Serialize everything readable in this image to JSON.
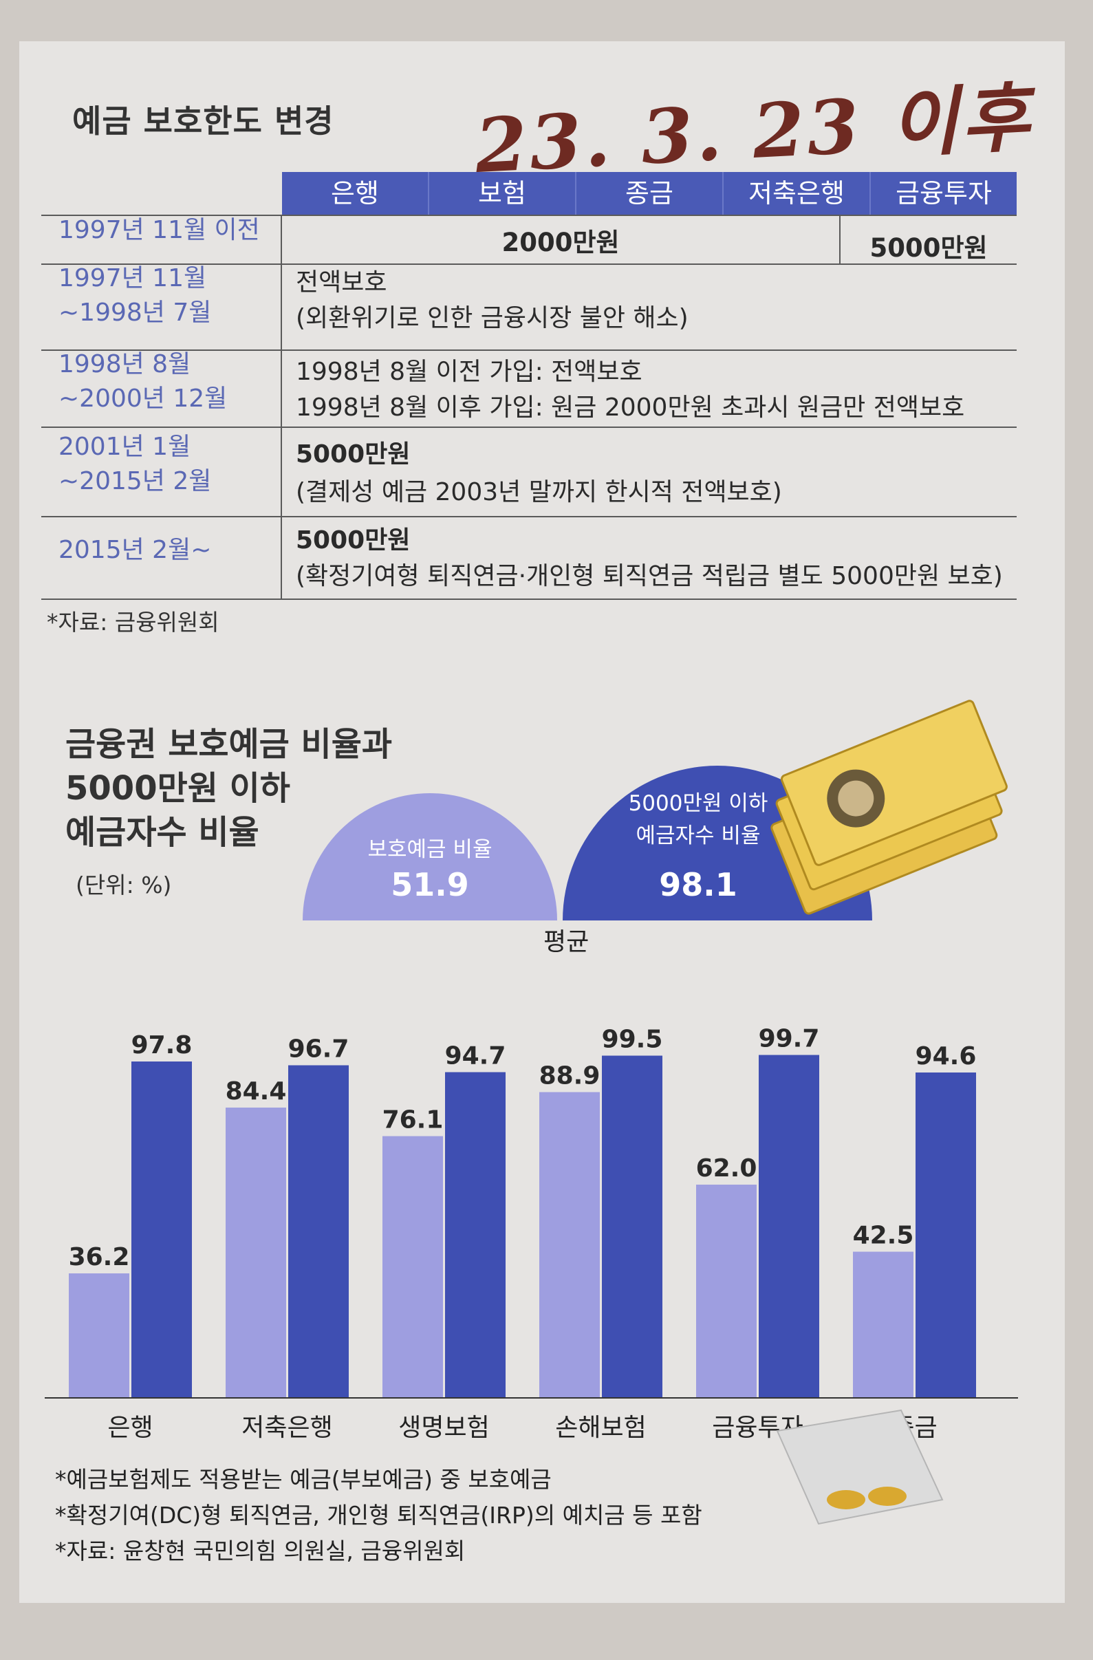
{
  "handwriting": "23. 3. 23 이후",
  "table": {
    "title": "예금 보호한도 변경",
    "columns": [
      "은행",
      "보험",
      "종금",
      "저축은행",
      "금융투자"
    ],
    "rows": [
      {
        "period": "1997년 11월 이전",
        "values": [
          "2000만원",
          "5000만원"
        ]
      },
      {
        "period": "1997년 11월\n~1998년 7월",
        "line1": "전액보호",
        "line2": "(외환위기로 인한 금융시장 불안 해소)"
      },
      {
        "period": "1998년 8월\n~2000년 12월",
        "line1": "1998년 8월 이전 가입: 전액보호",
        "line2": "1998년 8월 이후 가입: 원금 2000만원 초과시 원금만 전액보호"
      },
      {
        "period": "2001년 1월\n~2015년 2월",
        "line1": "5000만원",
        "line2": "(결제성 예금 2003년 말까지 한시적 전액보호)"
      },
      {
        "period": "2015년 2월~",
        "line1": "5000만원",
        "line2": "(확정기여형 퇴직연금·개인형 퇴직연금 적립금 별도 5000만원 보호)"
      }
    ],
    "source": "*자료: 금융위원회"
  },
  "chart_title": [
    "금융권 보호예금 비율과",
    "5000만원 이하",
    "예금자수 비율"
  ],
  "unit": "(단위: %)",
  "average": {
    "label": "평균",
    "protected_label": "보호예금 비율",
    "protected_value": "51.9",
    "depositor_label": [
      "5000만원 이하",
      "예금자수 비율"
    ],
    "depositor_value": "98.1"
  },
  "chart_data": {
    "type": "bar",
    "categories": [
      "은행",
      "저축은행",
      "생명보험",
      "손해보험",
      "금융투자",
      "종금"
    ],
    "series": [
      {
        "values": [
          36.2,
          84.4,
          76.1,
          88.9,
          62.0,
          42.5
        ],
        "labels": [
          "36.2",
          "84.4",
          "76.1",
          "88.9",
          "62.0",
          "42.5"
        ],
        "color": "#9e9ee0"
      },
      {
        "values": [
          97.8,
          96.7,
          94.7,
          99.5,
          99.7,
          94.6
        ],
        "labels": [
          "97.8",
          "96.7",
          "94.7",
          "99.5",
          "99.7",
          "94.6"
        ],
        "color": "#3f4fb2"
      }
    ],
    "ylim": [
      0,
      100
    ]
  },
  "notes": [
    "*예금보험제도 적용받는 예금(부보예금) 중 보호예금",
    "*확정기여(DC)형 퇴직연금, 개인형 퇴직연금(IRP)의 예치금 등 포함",
    "*자료: 윤창현 국민의힘 의원실, 금융위원회"
  ]
}
